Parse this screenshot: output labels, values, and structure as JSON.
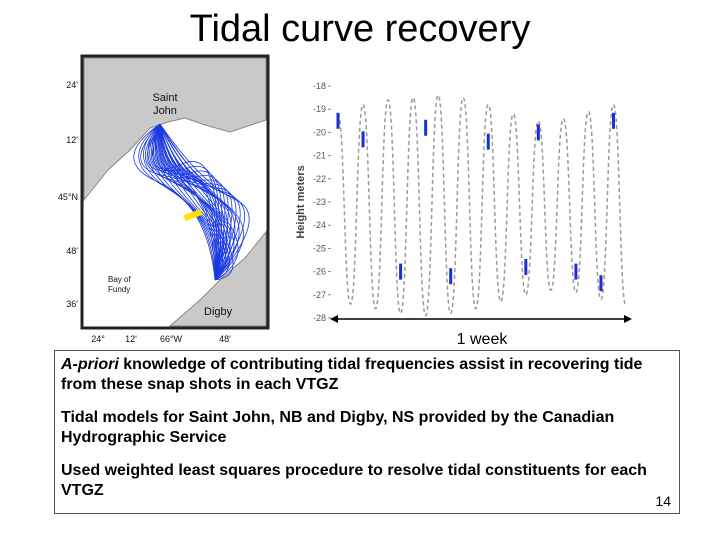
{
  "title": "Tidal curve recovery",
  "map": {
    "saint_john": [
      "Saint",
      "John"
    ],
    "bay_of_fundy": [
      "Bay of",
      "Fundy"
    ],
    "digby": "Digby",
    "lat_labels": [
      "24'",
      "12'",
      "45°N",
      "48'",
      "36'"
    ],
    "lon_labels": [
      "24°",
      "12'",
      "66°W",
      "48'"
    ]
  },
  "chart_data": {
    "type": "line",
    "ylabel": "Height meters",
    "annotation": "1 week",
    "ylim": [
      -28,
      -18
    ],
    "yticks": [
      -18,
      -19,
      -20,
      -21,
      -22,
      -23,
      -24,
      -25,
      -26,
      -27,
      -28
    ],
    "categories": [
      null,
      null,
      null,
      null,
      null,
      null,
      null,
      null,
      null,
      null,
      null,
      null,
      null,
      null,
      null,
      null,
      null,
      null,
      null,
      null,
      null,
      null,
      null,
      null
    ],
    "series": [
      {
        "color": "#9a9a9a",
        "values": [
          -19.2,
          -27.4,
          -18.8,
          -27.6,
          -18.6,
          -27.8,
          -18.5,
          -27.9,
          -18.4,
          -27.8,
          -18.5,
          -27.6,
          -18.8,
          -27.3,
          -19.2,
          -27.0,
          -19.5,
          -26.8,
          -19.4,
          -26.9,
          -19.1,
          -27.2,
          -18.8,
          -27.5
        ]
      },
      {
        "color": "#1a2fd6",
        "values": [
          -19.5,
          null,
          -20.3,
          null,
          null,
          -26.0,
          null,
          -19.8,
          null,
          -26.2,
          null,
          null,
          -20.4,
          null,
          null,
          -25.8,
          -20.0,
          null,
          null,
          -26.0,
          null,
          -26.5,
          -19.5,
          null
        ]
      }
    ]
  },
  "body": {
    "paragraphs": [
      [
        {
          "text": "A-priori",
          "italic": true
        },
        {
          "text": " knowledge of contributing tidal frequencies assist in recovering tide from these snap shots in each VTGZ",
          "italic": false
        }
      ],
      [
        {
          "text": "Tidal models for Saint John, NB and Digby, NS provided by the Canadian Hydrographic Service",
          "italic": false
        }
      ],
      [
        {
          "text": "Used weighted least squares procedure to resolve tidal constituents for each VTGZ",
          "italic": false
        }
      ]
    ]
  },
  "page_number": "14"
}
